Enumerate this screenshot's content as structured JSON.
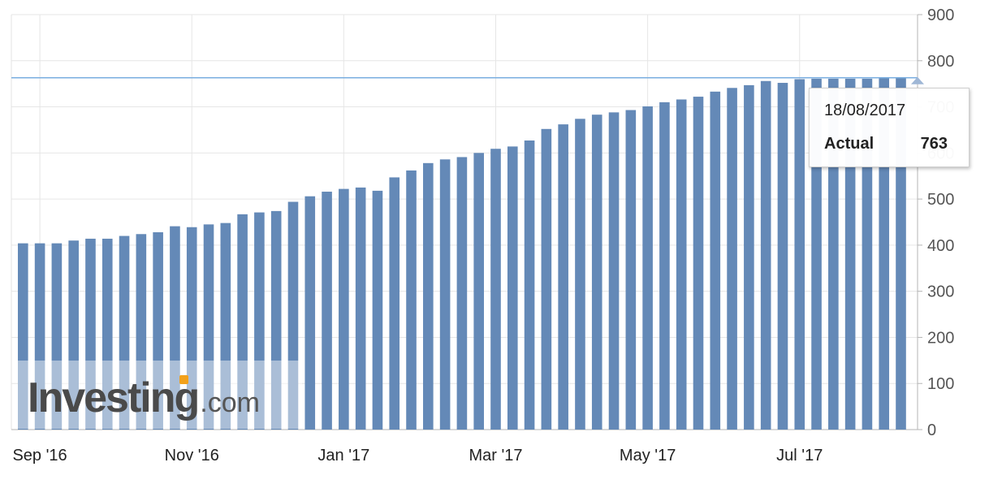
{
  "chart_data": {
    "type": "bar",
    "x": [
      "Sep '16",
      "Sep '16",
      "Sep '16",
      "Sep '16",
      "Sep '16",
      "Oct '16",
      "Oct '16",
      "Oct '16",
      "Oct '16",
      "Nov '16",
      "Nov '16",
      "Nov '16",
      "Nov '16",
      "Dec '16",
      "Dec '16",
      "Dec '16",
      "Dec '16",
      "Dec '16",
      "Jan '17",
      "Jan '17",
      "Jan '17",
      "Jan '17",
      "Feb '17",
      "Feb '17",
      "Feb '17",
      "Feb '17",
      "Mar '17",
      "Mar '17",
      "Mar '17",
      "Mar '17",
      "Mar '17",
      "Apr '17",
      "Apr '17",
      "Apr '17",
      "Apr '17",
      "May '17",
      "May '17",
      "May '17",
      "May '17",
      "Jun '17",
      "Jun '17",
      "Jun '17",
      "Jun '17",
      "Jun '17",
      "Jul '17",
      "Jul '17",
      "Jul '17",
      "Jul '17",
      "Aug '17",
      "Aug '17",
      "Aug '17",
      "Aug '17",
      "Aug '17"
    ],
    "values": [
      404,
      404,
      404,
      410,
      414,
      414,
      420,
      424,
      428,
      441,
      439,
      445,
      448,
      467,
      471,
      474,
      494,
      506,
      516,
      522,
      525,
      518,
      547,
      562,
      578,
      586,
      591,
      600,
      609,
      614,
      627,
      652,
      662,
      674,
      683,
      688,
      693,
      701,
      710,
      716,
      722,
      733,
      741,
      747,
      756,
      752,
      760,
      761,
      761,
      761,
      761,
      763,
      763
    ],
    "ylim": [
      0,
      900
    ],
    "y_ticks": [
      0,
      100,
      200,
      300,
      400,
      500,
      600,
      700,
      800,
      900
    ],
    "x_ticks": [
      {
        "label": "Sep '16",
        "index": 1
      },
      {
        "label": "Nov '16",
        "index": 10
      },
      {
        "label": "Jan '17",
        "index": 19
      },
      {
        "label": "Mar '17",
        "index": 28
      },
      {
        "label": "May '17",
        "index": 37
      },
      {
        "label": "Jul '17",
        "index": 46
      }
    ],
    "reference_line": 763,
    "grid": true,
    "bar_color": "#6489b7"
  },
  "tooltip": {
    "date": "18/08/2017",
    "label": "Actual",
    "value": "763"
  },
  "watermark": {
    "brand": "Investing",
    "suffix": ".com"
  }
}
